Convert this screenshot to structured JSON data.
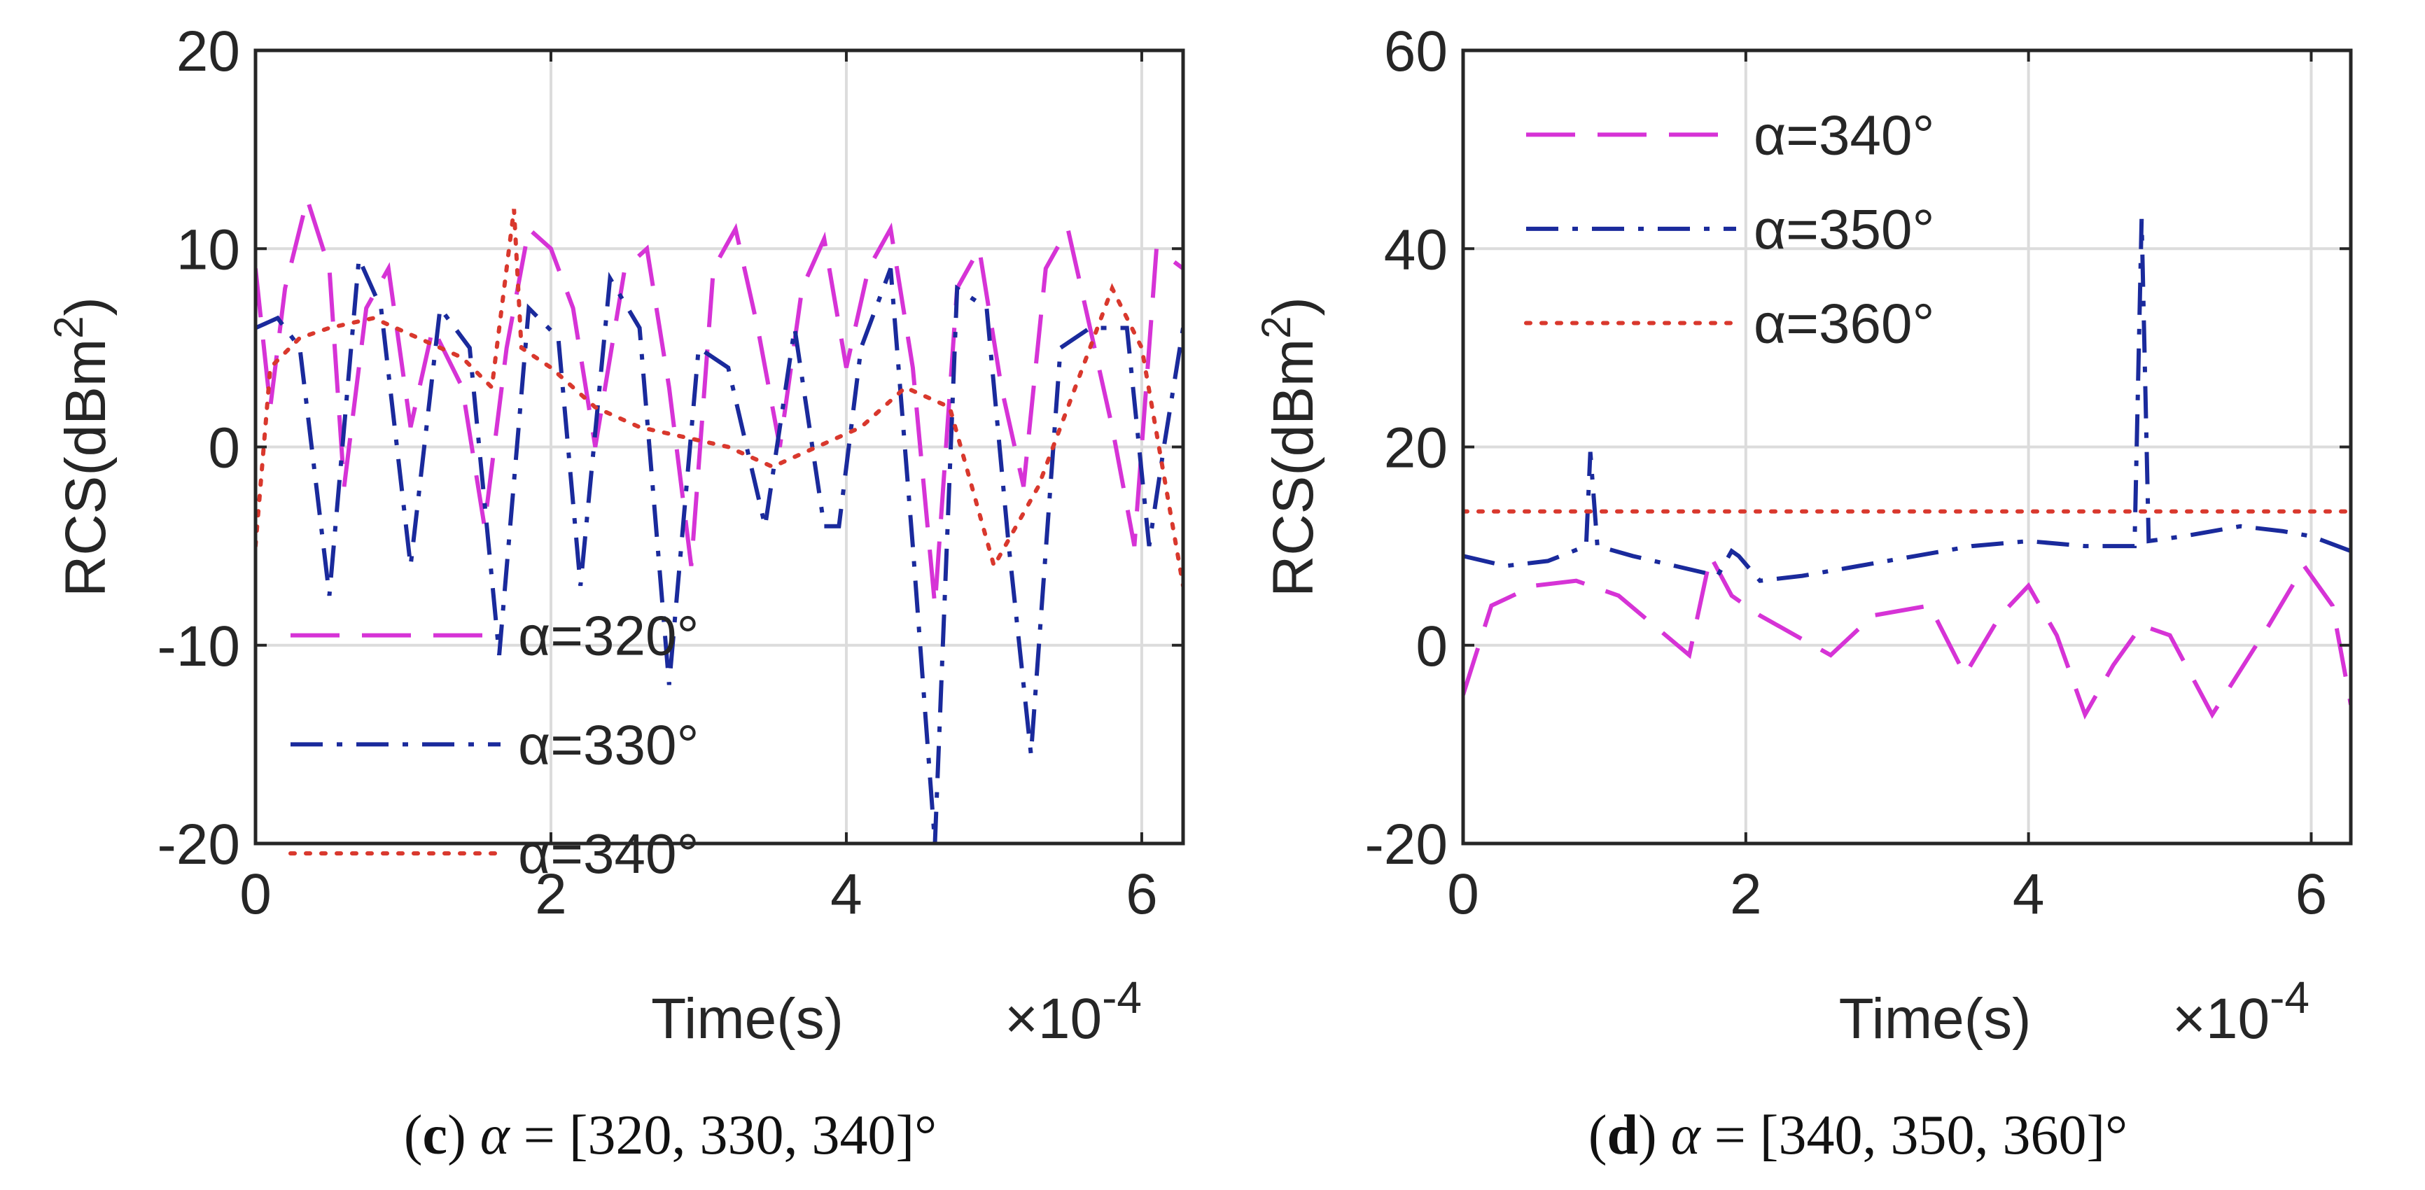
{
  "colors": {
    "magenta": "#d633d6",
    "navy": "#1a2a9c",
    "red": "#d9382d",
    "axis": "#262626",
    "grid": "#dcdcdc"
  },
  "chart_data": [
    {
      "type": "line",
      "panel": "c",
      "xlabel": "Time(s)",
      "ylabel": "RCS(dBm",
      "ylabel_sup": "2",
      "ylabel_close": ")",
      "x_multiplier": "×10",
      "x_exponent": "-4",
      "xlim": [
        0,
        6.28
      ],
      "ylim": [
        -20,
        20
      ],
      "xticks": [
        0,
        2,
        4,
        6
      ],
      "yticks": [
        -20,
        -10,
        0,
        10,
        20
      ],
      "grid": true,
      "legend_position": "bottom-left",
      "caption": {
        "label": "c",
        "alpha": "α",
        "rest": " = [320, 330, 340]°"
      },
      "series": [
        {
          "name": "α=320°",
          "style": "dashed",
          "color": "#d633d6",
          "x": [
            0,
            0.1,
            0.2,
            0.35,
            0.5,
            0.6,
            0.75,
            0.9,
            1.05,
            1.2,
            1.4,
            1.55,
            1.7,
            1.85,
            2.0,
            2.15,
            2.3,
            2.5,
            2.65,
            2.8,
            2.95,
            3.1,
            3.25,
            3.4,
            3.55,
            3.7,
            3.85,
            4.0,
            4.15,
            4.3,
            4.45,
            4.6,
            4.75,
            4.9,
            5.05,
            5.2,
            5.35,
            5.5,
            5.65,
            5.8,
            5.95,
            6.1,
            6.28
          ],
          "y": [
            9,
            2,
            8,
            12.5,
            9,
            -2,
            7,
            9,
            1,
            6,
            3,
            -4,
            5,
            11,
            10,
            7,
            0,
            9,
            10,
            3,
            -6,
            9,
            11,
            6,
            0,
            8,
            10.5,
            4,
            9,
            11,
            4,
            -8,
            8,
            10,
            3,
            -2,
            9,
            11,
            6,
            1,
            -5,
            10,
            9
          ]
        },
        {
          "name": "α=330°",
          "style": "dashdot",
          "color": "#1a2a9c",
          "x": [
            0,
            0.15,
            0.3,
            0.5,
            0.7,
            0.85,
            1.05,
            1.25,
            1.45,
            1.65,
            1.85,
            2.05,
            2.2,
            2.4,
            2.6,
            2.8,
            3.0,
            3.2,
            3.45,
            3.65,
            3.85,
            3.95,
            4.1,
            4.3,
            4.45,
            4.6,
            4.75,
            4.95,
            5.1,
            5.25,
            5.45,
            5.65,
            5.9,
            6.05,
            6.15,
            6.28
          ],
          "y": [
            6,
            6.5,
            5,
            -7.5,
            9.5,
            7,
            -6,
            7,
            5,
            -10.5,
            7,
            5.5,
            -7,
            8.5,
            6,
            -12,
            5,
            4,
            -4,
            6,
            -4,
            -4,
            5,
            9,
            -5,
            -20,
            8,
            7,
            -5,
            -15.5,
            5,
            6,
            6,
            -5,
            0,
            6
          ]
        },
        {
          "name": "α=340°",
          "style": "dotted",
          "color": "#d9382d",
          "x": [
            0,
            0.1,
            0.3,
            0.5,
            0.8,
            1.1,
            1.4,
            1.6,
            1.75,
            1.8,
            2.0,
            2.3,
            2.6,
            2.9,
            3.2,
            3.5,
            3.8,
            4.1,
            4.4,
            4.7,
            5.0,
            5.3,
            5.6,
            5.8,
            6.0,
            6.28
          ],
          "y": [
            -5,
            4,
            5.5,
            6,
            6.5,
            5.5,
            4.5,
            3,
            12,
            5,
            4,
            2,
            1,
            0.5,
            0,
            -1,
            0,
            1,
            3,
            2,
            -6,
            -2,
            4,
            8,
            5,
            -7
          ]
        }
      ]
    },
    {
      "type": "line",
      "panel": "d",
      "xlabel": "Time(s)",
      "ylabel": "RCS(dBm",
      "ylabel_sup": "2",
      "ylabel_close": ")",
      "x_multiplier": "×10",
      "x_exponent": "-4",
      "xlim": [
        0,
        6.28
      ],
      "ylim": [
        -20,
        60
      ],
      "xticks": [
        0,
        2,
        4,
        6
      ],
      "yticks": [
        -20,
        0,
        20,
        40,
        60
      ],
      "grid": true,
      "legend_position": "top-left",
      "caption": {
        "label": "d",
        "alpha": "α",
        "rest": " = [340, 350, 360]°"
      },
      "series": [
        {
          "name": "α=340°",
          "style": "dashed",
          "color": "#d633d6",
          "x": [
            0,
            0.2,
            0.5,
            0.8,
            1.1,
            1.35,
            1.6,
            1.75,
            1.9,
            2.1,
            2.35,
            2.6,
            2.9,
            3.3,
            3.55,
            3.8,
            4.0,
            4.2,
            4.4,
            4.6,
            4.8,
            5.0,
            5.3,
            5.7,
            5.95,
            6.15,
            6.28
          ],
          "y": [
            -5,
            4,
            6,
            6.5,
            5,
            2,
            -1,
            9,
            5,
            3,
            1,
            -1,
            3,
            4,
            -3,
            3,
            6,
            1,
            -7,
            -2,
            2,
            1,
            -7,
            2,
            8,
            4,
            -6
          ]
        },
        {
          "name": "α=350°",
          "style": "dashdot",
          "color": "#1a2a9c",
          "x": [
            0,
            0.3,
            0.6,
            0.87,
            0.9,
            0.95,
            1.2,
            1.5,
            1.8,
            1.9,
            1.95,
            2.1,
            2.4,
            2.8,
            3.2,
            3.6,
            4.0,
            4.4,
            4.75,
            4.8,
            4.85,
            5.1,
            5.5,
            5.8,
            6.0,
            6.28
          ],
          "y": [
            9,
            8,
            8.5,
            10,
            19.5,
            10,
            9,
            8,
            7,
            9.5,
            9,
            6.5,
            7,
            8,
            9,
            10,
            10.5,
            10,
            10,
            43,
            10.5,
            11,
            12,
            11.5,
            11,
            9.5
          ]
        },
        {
          "name": "α=360°",
          "style": "dotted",
          "color": "#d9382d",
          "x": [
            0,
            6.28
          ],
          "y": [
            13.5,
            13.5
          ]
        }
      ]
    }
  ]
}
